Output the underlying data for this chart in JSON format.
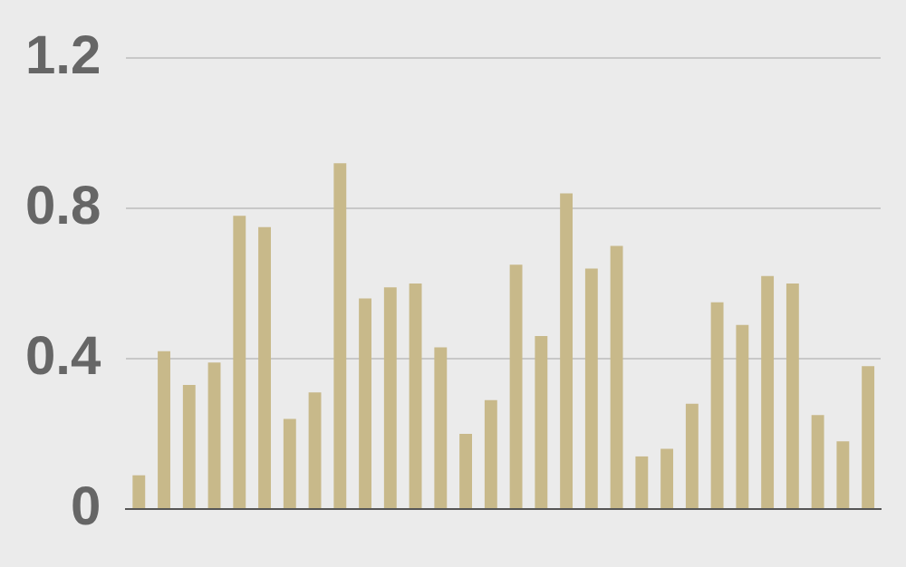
{
  "chart_data": {
    "type": "bar",
    "categories": [
      null,
      null,
      null,
      null,
      null,
      null,
      null,
      null,
      null,
      null,
      null,
      null,
      null,
      null,
      null,
      null,
      null,
      null,
      null,
      null,
      null,
      null,
      null,
      null,
      null,
      null,
      null,
      null,
      null,
      null
    ],
    "values": [
      0.09,
      0.42,
      0.33,
      0.39,
      0.78,
      0.75,
      0.24,
      0.31,
      0.92,
      0.56,
      0.59,
      0.6,
      0.43,
      0.2,
      0.29,
      0.65,
      0.46,
      0.84,
      0.64,
      0.7,
      0.14,
      0.16,
      0.28,
      0.55,
      0.49,
      0.62,
      0.6,
      0.25,
      0.18,
      0.38
    ],
    "color": "#c8b98a",
    "ylim": [
      0,
      1.2
    ],
    "yticks": [
      0,
      0.4,
      0.8,
      1.2
    ],
    "grid": "y"
  }
}
